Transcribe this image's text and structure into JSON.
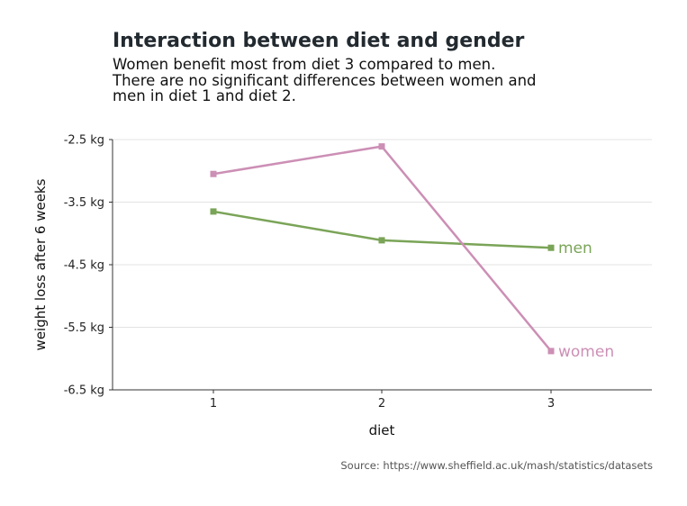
{
  "chart_data": {
    "type": "line",
    "title": "Interaction between diet and gender",
    "subtitle": [
      "Women benefit most from diet 3 compared to men.",
      "There are no significant differences between women and",
      "men in diet 1 and diet 2."
    ],
    "xlabel": "diet",
    "ylabel": "weight loss after 6 weeks",
    "categories": [
      "1",
      "2",
      "3"
    ],
    "ylim": [
      -6.5,
      -2.5
    ],
    "yticks": [
      -2.5,
      -3.5,
      -4.5,
      -5.5,
      -6.5
    ],
    "ytick_labels": [
      "-2.5 kg",
      "-3.5 kg",
      "-4.5 kg",
      "-5.5 kg",
      "-6.5 kg"
    ],
    "grid": true,
    "series": [
      {
        "name": "men",
        "color": "#7aa457",
        "values": [
          -3.65,
          -4.11,
          -4.23
        ]
      },
      {
        "name": "women",
        "color": "#cc8fb5",
        "values": [
          -3.05,
          -2.61,
          -5.88
        ]
      }
    ],
    "source": "Source: https://www.sheffield.ac.uk/mash/statistics/datasets"
  }
}
